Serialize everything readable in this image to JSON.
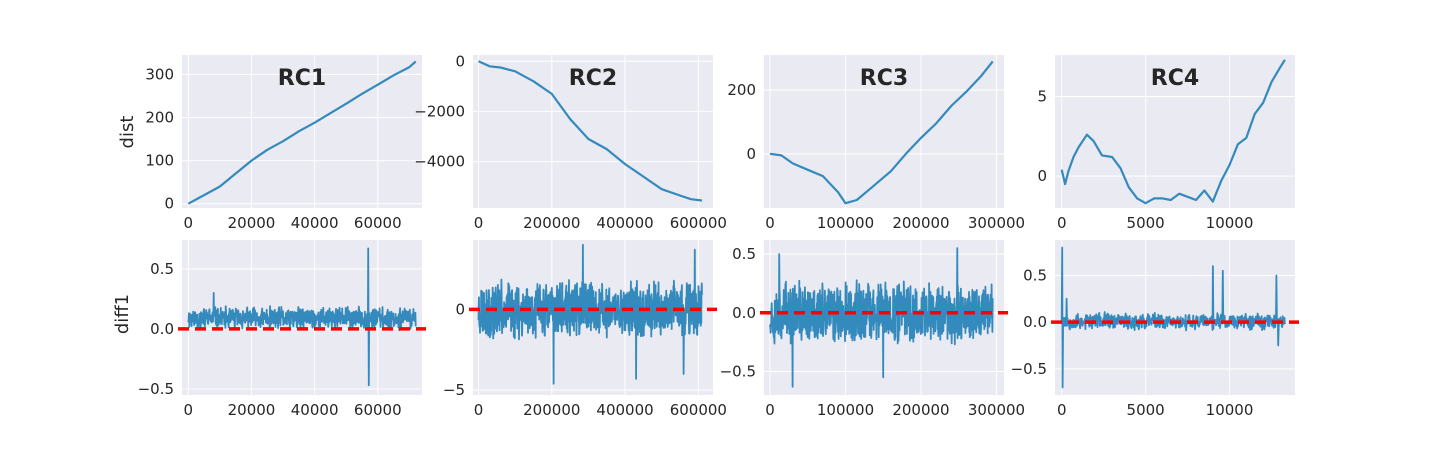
{
  "colors": {
    "series": "#348abd",
    "reference": "#ff0000",
    "panel_bg": "#eaeaf2",
    "grid": "#ffffff"
  },
  "row_labels": {
    "top": "dist",
    "bottom": "diff1"
  },
  "chart_data": [
    {
      "type": "line",
      "title": "RC1",
      "row": "top",
      "column": 1,
      "ylabel": "dist",
      "grid": true,
      "xlim": [
        -2000,
        74000
      ],
      "ylim": [
        -10,
        345
      ],
      "x_ticks": [
        0,
        20000,
        40000,
        60000
      ],
      "x_tick_labels": [
        "0",
        "20000",
        "40000",
        "60000"
      ],
      "y_ticks": [
        0,
        100,
        200,
        300
      ],
      "y_tick_labels": [
        "0",
        "100",
        "200",
        "300"
      ],
      "x": [
        0,
        5000,
        10000,
        15000,
        20000,
        25000,
        30000,
        35000,
        40000,
        45000,
        50000,
        55000,
        60000,
        65000,
        70000,
        72000
      ],
      "y": [
        0,
        20,
        40,
        70,
        100,
        125,
        145,
        168,
        188,
        210,
        232,
        255,
        276,
        298,
        317,
        330
      ]
    },
    {
      "type": "line",
      "title": "RC2",
      "row": "top",
      "column": 2,
      "ylabel": "",
      "grid": true,
      "xlim": [
        -15000,
        640000
      ],
      "ylim": [
        -5850,
        250
      ],
      "x_ticks": [
        0,
        200000,
        400000,
        600000
      ],
      "x_tick_labels": [
        "0",
        "200000",
        "400000",
        "600000"
      ],
      "y_ticks": [
        0,
        -2000,
        -4000
      ],
      "y_tick_labels": [
        "0",
        "−2000",
        "−4000"
      ],
      "x": [
        0,
        30000,
        60000,
        100000,
        150000,
        200000,
        250000,
        300000,
        350000,
        400000,
        450000,
        500000,
        550000,
        580000,
        610000
      ],
      "y": [
        0,
        -200,
        -250,
        -400,
        -800,
        -1300,
        -2300,
        -3100,
        -3500,
        -4100,
        -4600,
        -5100,
        -5350,
        -5500,
        -5550
      ]
    },
    {
      "type": "line",
      "title": "RC3",
      "row": "top",
      "column": 3,
      "ylabel": "",
      "grid": true,
      "xlim": [
        -8000,
        310000
      ],
      "ylim": [
        -170,
        310
      ],
      "x_ticks": [
        0,
        100000,
        200000,
        300000
      ],
      "x_tick_labels": [
        "0",
        "100000",
        "200000",
        "300000"
      ],
      "y_ticks": [
        0,
        200
      ],
      "y_tick_labels": [
        "0",
        "200"
      ],
      "x": [
        0,
        15000,
        30000,
        50000,
        70000,
        90000,
        100000,
        115000,
        135000,
        160000,
        180000,
        200000,
        220000,
        240000,
        260000,
        280000,
        295000
      ],
      "y": [
        0,
        -5,
        -30,
        -50,
        -70,
        -120,
        -155,
        -145,
        -105,
        -55,
        0,
        50,
        95,
        150,
        195,
        245,
        290
      ]
    },
    {
      "type": "line",
      "title": "RC4",
      "row": "top",
      "column": 4,
      "ylabel": "",
      "grid": true,
      "xlim": [
        -400,
        13900
      ],
      "ylim": [
        -2,
        7.6
      ],
      "x_ticks": [
        0,
        5000,
        10000
      ],
      "x_tick_labels": [
        "0",
        "5000",
        "10000"
      ],
      "y_ticks": [
        0,
        5
      ],
      "y_tick_labels": [
        "0",
        "5"
      ],
      "x": [
        0,
        200,
        400,
        700,
        1000,
        1500,
        1900,
        2400,
        3000,
        3500,
        4000,
        4500,
        5000,
        5500,
        6000,
        6500,
        7000,
        7500,
        8000,
        8500,
        9000,
        9500,
        10000,
        10500,
        11000,
        11500,
        12000,
        12500,
        13000,
        13300
      ],
      "y": [
        0.4,
        -0.5,
        0.3,
        1.2,
        1.8,
        2.6,
        2.2,
        1.3,
        1.2,
        0.5,
        -0.7,
        -1.4,
        -1.7,
        -1.4,
        -1.4,
        -1.5,
        -1.1,
        -1.3,
        -1.5,
        -0.9,
        -1.6,
        -0.3,
        0.7,
        2.0,
        2.4,
        3.9,
        4.6,
        5.9,
        6.8,
        7.3
      ]
    },
    {
      "type": "line",
      "title": "",
      "row": "bottom",
      "column": 1,
      "ylabel": "diff1",
      "grid": true,
      "xlim": [
        -2000,
        74000
      ],
      "ylim": [
        -0.55,
        0.74
      ],
      "x_ticks": [
        0,
        20000,
        40000,
        60000
      ],
      "x_tick_labels": [
        "0",
        "20000",
        "40000",
        "60000"
      ],
      "y_ticks": [
        -0.5,
        0,
        0.5
      ],
      "y_tick_labels": [
        "−0.5",
        "0.0",
        "0.5"
      ],
      "reference_line": {
        "y": 0,
        "style": "dashed"
      },
      "noise": {
        "x_start": 0,
        "x_end": 72000,
        "count": 700,
        "center": 0.09,
        "amplitude": 0.09,
        "seed": 11
      },
      "spikes": [
        {
          "x": 57000,
          "y": 0.67
        },
        {
          "x": 57200,
          "y": -0.47
        },
        {
          "x": 8000,
          "y": 0.3
        }
      ]
    },
    {
      "type": "line",
      "title": "",
      "row": "bottom",
      "column": 2,
      "ylabel": "",
      "grid": true,
      "xlim": [
        -15000,
        640000
      ],
      "ylim": [
        -5.3,
        4.3
      ],
      "x_ticks": [
        0,
        200000,
        400000,
        600000
      ],
      "x_tick_labels": [
        "0",
        "200000",
        "400000",
        "600000"
      ],
      "y_ticks": [
        -5,
        0
      ],
      "y_tick_labels": [
        "−5",
        "0"
      ],
      "reference_line": {
        "y": 0,
        "style": "dashed"
      },
      "noise": {
        "x_start": 0,
        "x_end": 610000,
        "count": 900,
        "center": 0,
        "amplitude": 1.7,
        "seed": 23
      },
      "spikes": [
        {
          "x": 205000,
          "y": -4.6
        },
        {
          "x": 285000,
          "y": 4.0
        },
        {
          "x": 430000,
          "y": -4.3
        },
        {
          "x": 560000,
          "y": -4.0
        },
        {
          "x": 590000,
          "y": 3.7
        }
      ]
    },
    {
      "type": "line",
      "title": "",
      "row": "bottom",
      "column": 3,
      "ylabel": "",
      "grid": true,
      "xlim": [
        -8000,
        310000
      ],
      "ylim": [
        -0.7,
        0.62
      ],
      "x_ticks": [
        0,
        100000,
        200000,
        300000
      ],
      "x_tick_labels": [
        "0",
        "100000",
        "200000",
        "300000"
      ],
      "y_ticks": [
        -0.5,
        0,
        0.5
      ],
      "y_tick_labels": [
        "−0.5",
        "0.0",
        "0.5"
      ],
      "reference_line": {
        "y": 0,
        "style": "dashed"
      },
      "noise": {
        "x_start": 0,
        "x_end": 295000,
        "count": 800,
        "center": 0,
        "amplitude": 0.26,
        "seed": 37
      },
      "spikes": [
        {
          "x": 30000,
          "y": -0.63
        },
        {
          "x": 12000,
          "y": 0.5
        },
        {
          "x": 248000,
          "y": 0.55
        },
        {
          "x": 150000,
          "y": -0.55
        }
      ]
    },
    {
      "type": "line",
      "title": "",
      "row": "bottom",
      "column": 4,
      "ylabel": "",
      "grid": true,
      "xlim": [
        -400,
        13900
      ],
      "ylim": [
        -0.78,
        0.88
      ],
      "x_ticks": [
        0,
        5000,
        10000
      ],
      "x_tick_labels": [
        "0",
        "5000",
        "10000"
      ],
      "y_ticks": [
        -0.5,
        0,
        0.5
      ],
      "y_tick_labels": [
        "−0.5",
        "0.0",
        "0.5"
      ],
      "reference_line": {
        "y": 0,
        "style": "dashed"
      },
      "noise": {
        "x_start": 0,
        "x_end": 13300,
        "count": 500,
        "center": 0.01,
        "amplitude": 0.09,
        "seed": 53
      },
      "spikes": [
        {
          "x": 30,
          "y": 0.8
        },
        {
          "x": 60,
          "y": -0.7
        },
        {
          "x": 300,
          "y": 0.25
        },
        {
          "x": 9000,
          "y": 0.6
        },
        {
          "x": 9600,
          "y": 0.55
        },
        {
          "x": 12800,
          "y": 0.5
        },
        {
          "x": 12900,
          "y": -0.25
        }
      ]
    }
  ]
}
